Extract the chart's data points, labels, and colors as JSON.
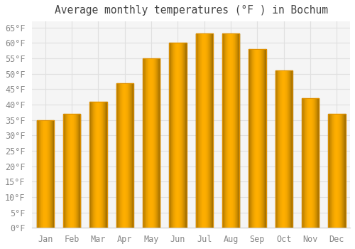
{
  "title": "Average monthly temperatures (°F ) in Bochum",
  "months": [
    "Jan",
    "Feb",
    "Mar",
    "Apr",
    "May",
    "Jun",
    "Jul",
    "Aug",
    "Sep",
    "Oct",
    "Nov",
    "Dec"
  ],
  "values": [
    35,
    37,
    41,
    47,
    55,
    60,
    63,
    63,
    58,
    51,
    42,
    37
  ],
  "bar_color_main": "#FFC020",
  "bar_color_edge": "#E09000",
  "ylim": [
    0,
    67
  ],
  "yticks": [
    0,
    5,
    10,
    15,
    20,
    25,
    30,
    35,
    40,
    45,
    50,
    55,
    60,
    65
  ],
  "ytick_labels": [
    "0°F",
    "5°F",
    "10°F",
    "15°F",
    "20°F",
    "25°F",
    "30°F",
    "35°F",
    "40°F",
    "45°F",
    "50°F",
    "55°F",
    "60°F",
    "65°F"
  ],
  "title_fontsize": 10.5,
  "tick_fontsize": 8.5,
  "background_color": "#ffffff",
  "plot_bg_color": "#f5f5f5",
  "grid_color": "#e0e0e0",
  "title_color": "#444444",
  "tick_color": "#888888",
  "bar_width": 0.65
}
